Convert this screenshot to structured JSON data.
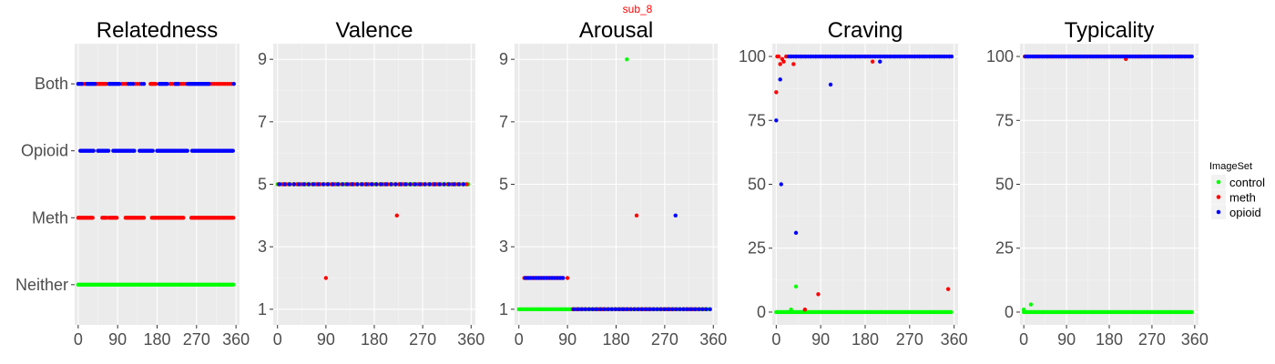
{
  "figure": {
    "suptitle": "sub_8",
    "legend": {
      "title": "ImageSet",
      "placement": "right",
      "entries": [
        {
          "label": "control",
          "color": "#00ff00"
        },
        {
          "label": "meth",
          "color": "#ff0000"
        },
        {
          "label": "opioid",
          "color": "#0000ff"
        }
      ]
    }
  },
  "colors": {
    "control": "#00ff00",
    "meth": "#ff0000",
    "opioid": "#0000ff",
    "panel_background": "#ebebeb",
    "gridlines": "#ffffff",
    "suptitle": "#ff0000"
  },
  "chart_data": [
    {
      "type": "scatter",
      "title": "Relatedness",
      "xlabel": "",
      "ylabel": "",
      "xlim": [
        -8,
        368
      ],
      "x_ticks": [
        0,
        90,
        180,
        270,
        360
      ],
      "y_categories": [
        "Neither",
        "Meth",
        "Opioid",
        "Both"
      ],
      "grid": true,
      "series": [
        {
          "name": "control",
          "color": "#00ff00",
          "points": [
            {
              "xs": [
                0,
                355,
                3
              ],
              "y": "Neither"
            }
          ]
        },
        {
          "name": "meth",
          "color": "#ff0000",
          "points": [
            {
              "xs": [
                0,
                35,
                3
              ],
              "y": "Meth"
            },
            {
              "xs": [
                55,
                65,
                3
              ],
              "y": "Meth"
            },
            {
              "xs": [
                70,
                90,
                3
              ],
              "y": "Meth"
            },
            {
              "xs": [
                108,
                150,
                3
              ],
              "y": "Meth"
            },
            {
              "xs": [
                168,
                240,
                3
              ],
              "y": "Meth"
            },
            {
              "xs": [
                258,
                355,
                3
              ],
              "y": "Meth"
            },
            {
              "xs": [
                10,
                15,
                5
              ],
              "y": "Both"
            },
            {
              "xs": [
                40,
                65,
                3
              ],
              "y": "Both"
            },
            {
              "xs": [
                100,
                110,
                5
              ],
              "y": "Both"
            },
            {
              "xs": [
                130,
                140,
                5
              ],
              "y": "Both"
            },
            {
              "xs": [
                165,
                178,
                3
              ],
              "y": "Both"
            },
            {
              "xs": [
                210,
                220,
                5
              ],
              "y": "Both"
            },
            {
              "xs": [
                230,
                245,
                5
              ],
              "y": "Both"
            },
            {
              "xs": [
                300,
                345,
                5
              ],
              "y": "Both"
            },
            {
              "xs": [
                350,
                350,
                1
              ],
              "y": "Both"
            }
          ]
        },
        {
          "name": "opioid",
          "color": "#0000ff",
          "points": [
            {
              "xs": [
                5,
                35,
                3
              ],
              "y": "Opioid"
            },
            {
              "xs": [
                45,
                70,
                3
              ],
              "y": "Opioid"
            },
            {
              "xs": [
                80,
                130,
                3
              ],
              "y": "Opioid"
            },
            {
              "xs": [
                140,
                170,
                3
              ],
              "y": "Opioid"
            },
            {
              "xs": [
                180,
                250,
                3
              ],
              "y": "Opioid"
            },
            {
              "xs": [
                260,
                355,
                3
              ],
              "y": "Opioid"
            },
            {
              "xs": [
                0,
                8,
                4
              ],
              "y": "Both"
            },
            {
              "xs": [
                20,
                38,
                3
              ],
              "y": "Both"
            },
            {
              "xs": [
                70,
                95,
                3
              ],
              "y": "Both"
            },
            {
              "xs": [
                115,
                125,
                5
              ],
              "y": "Both"
            },
            {
              "xs": [
                145,
                150,
                5
              ],
              "y": "Both"
            },
            {
              "xs": [
                185,
                205,
                3
              ],
              "y": "Both"
            },
            {
              "xs": [
                222,
                228,
                3
              ],
              "y": "Both"
            },
            {
              "xs": [
                250,
                298,
                3
              ],
              "y": "Both"
            },
            {
              "xs": [
                355,
                355,
                1
              ],
              "y": "Both"
            }
          ]
        }
      ]
    },
    {
      "type": "scatter",
      "title": "Valence",
      "xlabel": "",
      "ylabel": "",
      "xlim": [
        -8,
        368
      ],
      "ylim": [
        0.5,
        9.5
      ],
      "x_ticks": [
        0,
        90,
        180,
        270,
        360
      ],
      "y_ticks": [
        1,
        3,
        5,
        7,
        9
      ],
      "grid": true,
      "series": [
        {
          "name": "control",
          "color": "#00ff00",
          "points": [
            {
              "xs": [
                0,
                355,
                5
              ],
              "y": 5
            }
          ]
        },
        {
          "name": "meth",
          "color": "#ff0000",
          "points": [
            {
              "xs": [
                2,
                352,
                7
              ],
              "y": 5
            },
            {
              "x": 90,
              "y": 2
            },
            {
              "x": 222,
              "y": 4
            }
          ]
        },
        {
          "name": "opioid",
          "color": "#0000ff",
          "points": [
            {
              "xs": [
                4,
                354,
                9
              ],
              "y": 5
            }
          ]
        }
      ]
    },
    {
      "type": "scatter",
      "title": "Arousal",
      "xlabel": "",
      "ylabel": "",
      "xlim": [
        -8,
        368
      ],
      "ylim": [
        0.5,
        9.5
      ],
      "x_ticks": [
        0,
        90,
        180,
        270,
        360
      ],
      "y_ticks": [
        1,
        3,
        5,
        7,
        9
      ],
      "grid": true,
      "series": [
        {
          "name": "control",
          "color": "#00ff00",
          "points": [
            {
              "xs": [
                0,
                355,
                4
              ],
              "y": 1
            },
            {
              "x": 200,
              "y": 9
            }
          ]
        },
        {
          "name": "meth",
          "color": "#ff0000",
          "points": [
            {
              "xs": [
                10,
                80,
                5
              ],
              "y": 2
            },
            {
              "x": 90,
              "y": 2
            },
            {
              "xs": [
                100,
                350,
                6
              ],
              "y": 1
            },
            {
              "x": 218,
              "y": 4
            }
          ]
        },
        {
          "name": "opioid",
          "color": "#0000ff",
          "points": [
            {
              "xs": [
                12,
                82,
                5
              ],
              "y": 2
            },
            {
              "xs": [
                102,
                355,
                7
              ],
              "y": 1
            },
            {
              "x": 290,
              "y": 4
            }
          ]
        }
      ]
    },
    {
      "type": "scatter",
      "title": "Craving",
      "xlabel": "",
      "ylabel": "",
      "xlim": [
        -8,
        368
      ],
      "ylim": [
        -5,
        105
      ],
      "x_ticks": [
        0,
        90,
        180,
        270,
        360
      ],
      "y_ticks": [
        0,
        25,
        50,
        75,
        100
      ],
      "grid": true,
      "series": [
        {
          "name": "control",
          "color": "#00ff00",
          "points": [
            {
              "xs": [
                0,
                355,
                3
              ],
              "y": 0
            },
            {
              "x": 30,
              "y": 1
            },
            {
              "x": 40,
              "y": 10
            }
          ]
        },
        {
          "name": "meth",
          "color": "#ff0000",
          "points": [
            {
              "x": 0,
              "y": 86
            },
            {
              "x": 2,
              "y": 100
            },
            {
              "x": 5,
              "y": 100
            },
            {
              "x": 8,
              "y": 97
            },
            {
              "x": 12,
              "y": 99
            },
            {
              "x": 15,
              "y": 98
            },
            {
              "x": 35,
              "y": 97
            },
            {
              "xs": [
                20,
                350,
                10
              ],
              "y": 100
            },
            {
              "x": 58,
              "y": 1
            },
            {
              "x": 85,
              "y": 7
            },
            {
              "x": 195,
              "y": 98
            },
            {
              "x": 348,
              "y": 9
            }
          ]
        },
        {
          "name": "opioid",
          "color": "#0000ff",
          "points": [
            {
              "x": 0,
              "y": 75
            },
            {
              "x": 8,
              "y": 91
            },
            {
              "x": 10,
              "y": 50
            },
            {
              "x": 40,
              "y": 31
            },
            {
              "x": 110,
              "y": 89
            },
            {
              "x": 210,
              "y": 98
            },
            {
              "xs": [
                25,
                355,
                5
              ],
              "y": 100
            }
          ]
        }
      ]
    },
    {
      "type": "scatter",
      "title": "Typicality",
      "xlabel": "",
      "ylabel": "",
      "xlim": [
        -8,
        368
      ],
      "ylim": [
        -5,
        105
      ],
      "x_ticks": [
        0,
        90,
        180,
        270,
        360
      ],
      "y_ticks": [
        0,
        25,
        50,
        75,
        100
      ],
      "grid": true,
      "series": [
        {
          "name": "control",
          "color": "#00ff00",
          "points": [
            {
              "xs": [
                0,
                355,
                3
              ],
              "y": 0
            },
            {
              "x": 0,
              "y": 1
            },
            {
              "x": 15,
              "y": 3
            }
          ]
        },
        {
          "name": "meth",
          "color": "#ff0000",
          "points": [
            {
              "xs": [
                2,
                352,
                6
              ],
              "y": 100
            },
            {
              "x": 215,
              "y": 99
            }
          ]
        },
        {
          "name": "opioid",
          "color": "#0000ff",
          "points": [
            {
              "xs": [
                4,
                355,
                5
              ],
              "y": 100
            }
          ]
        }
      ]
    }
  ]
}
